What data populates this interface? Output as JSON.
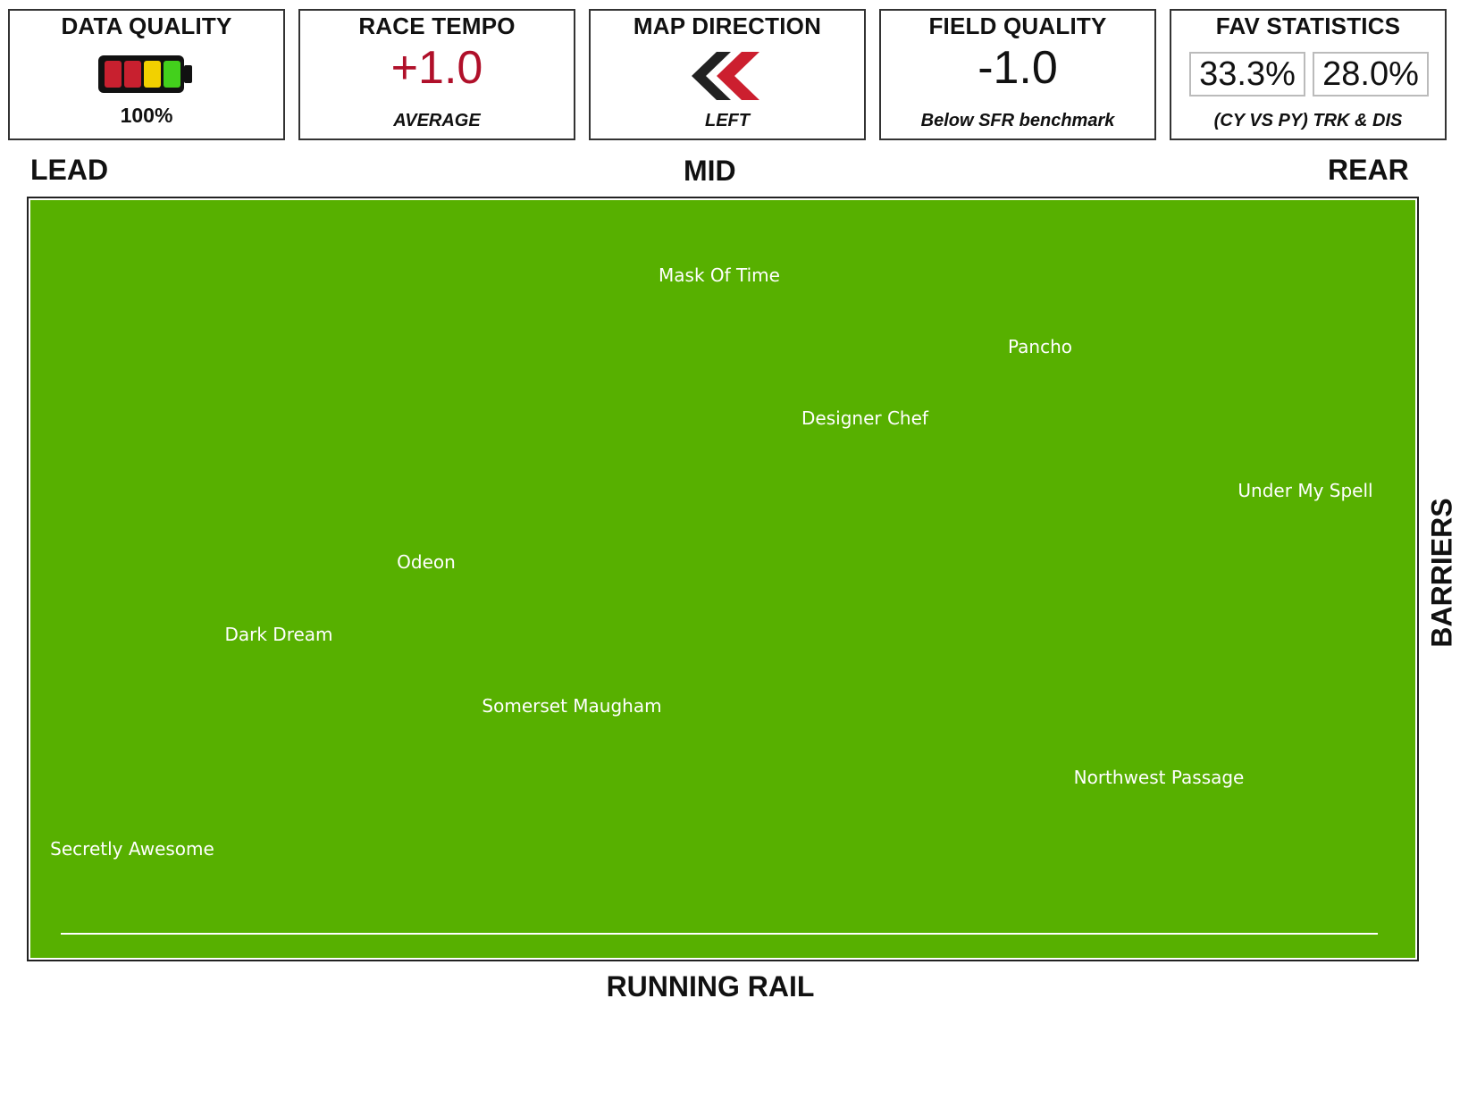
{
  "cards": {
    "data_quality": {
      "title": "DATA QUALITY",
      "value": "100%",
      "battery_colors": [
        "#c8202f",
        "#c8202f",
        "#f2d100",
        "#43d01c"
      ]
    },
    "race_tempo": {
      "title": "RACE TEMPO",
      "value": "+1.0",
      "subtitle": "AVERAGE",
      "value_color": "#b0102a"
    },
    "map_direction": {
      "title": "MAP DIRECTION",
      "subtitle": "LEFT",
      "icon": "double-chevron-left-icon"
    },
    "field_quality": {
      "title": "FIELD QUALITY",
      "value": "-1.0",
      "subtitle": "Below SFR benchmark"
    },
    "fav_statistics": {
      "title": "FAV STATISTICS",
      "current_year": "33.3%",
      "previous_year": "28.0%",
      "subtitle": "(CY VS PY) TRK & DIS"
    }
  },
  "positions": {
    "lead": "LEAD",
    "mid": "MID",
    "rear": "REAR"
  },
  "axes": {
    "bottom": "RUNNING RAIL",
    "right": "BARRIERS"
  },
  "track_color": "#57b000",
  "runners": [
    {
      "name": "Mask Of Time"
    },
    {
      "name": "Pancho"
    },
    {
      "name": "Designer Chef"
    },
    {
      "name": "Under My Spell"
    },
    {
      "name": "Odeon"
    },
    {
      "name": "Dark Dream"
    },
    {
      "name": "Somerset Maugham"
    },
    {
      "name": "Northwest Passage"
    },
    {
      "name": "Secretly Awesome"
    }
  ]
}
